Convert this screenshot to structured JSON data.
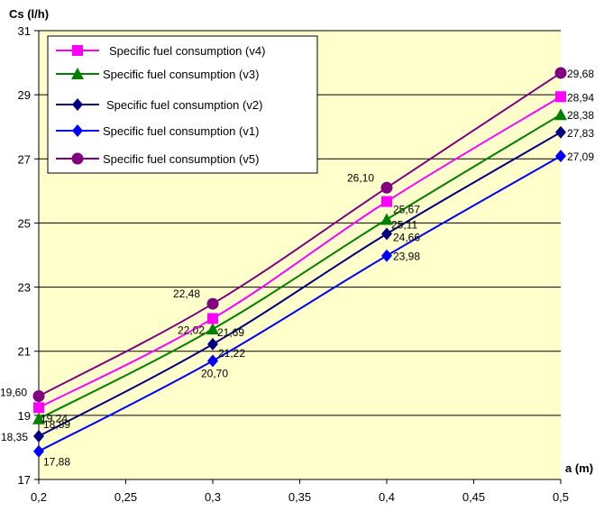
{
  "chart_data": {
    "type": "line",
    "title": "",
    "ylabel": "Cs (l/h)",
    "xlabel": "a (m)",
    "x": [
      0.2,
      0.3,
      0.4,
      0.5
    ],
    "xlim": [
      0.2,
      0.5
    ],
    "ylim": [
      17,
      31
    ],
    "x_ticks": [
      "0,2",
      "0,25",
      "0,3",
      "0,35",
      "0,4",
      "0,45",
      "0,5"
    ],
    "x_tick_values": [
      0.2,
      0.25,
      0.3,
      0.35,
      0.4,
      0.45,
      0.5
    ],
    "y_ticks": [
      "17",
      "19",
      "21",
      "23",
      "25",
      "27",
      "29",
      "31"
    ],
    "y_tick_values": [
      17,
      19,
      21,
      23,
      25,
      27,
      29,
      31
    ],
    "grid": "horizontal",
    "legend_position": "top-left",
    "plot_background": "#ffffcc",
    "series": [
      {
        "name": "Specific fuel consumption (v4)",
        "color": "#ff00ff",
        "marker": "square",
        "values": [
          19.24,
          22.02,
          25.67,
          28.94
        ],
        "labels": [
          "19,24",
          "22,02",
          "25,67",
          "28,94"
        ]
      },
      {
        "name": "Specific fuel consumption (v3)",
        "color": "#008000",
        "marker": "triangle",
        "values": [
          18.89,
          21.69,
          25.11,
          28.38
        ],
        "labels": [
          "18,89",
          "21,69",
          "25,11",
          "28,38"
        ]
      },
      {
        "name": "Specific fuel consumption (v2)",
        "color": "#000080",
        "marker": "diamond",
        "values": [
          18.35,
          21.22,
          24.66,
          27.83
        ],
        "labels": [
          "18,35",
          "21,22",
          "24,66",
          "27,83"
        ]
      },
      {
        "name": "Specific fuel consumption (v1)",
        "color": "#0000ff",
        "marker": "diamond",
        "values": [
          17.88,
          20.7,
          23.98,
          27.09
        ],
        "labels": [
          "17,88",
          "20,70",
          "23,98",
          "27,09"
        ]
      },
      {
        "name": "Specific fuel consumption (v5)",
        "color": "#800080",
        "marker": "circle",
        "values": [
          19.6,
          22.48,
          26.1,
          29.68
        ],
        "labels": [
          "19,60",
          "22,48",
          "26,10",
          "29,68"
        ]
      }
    ]
  }
}
